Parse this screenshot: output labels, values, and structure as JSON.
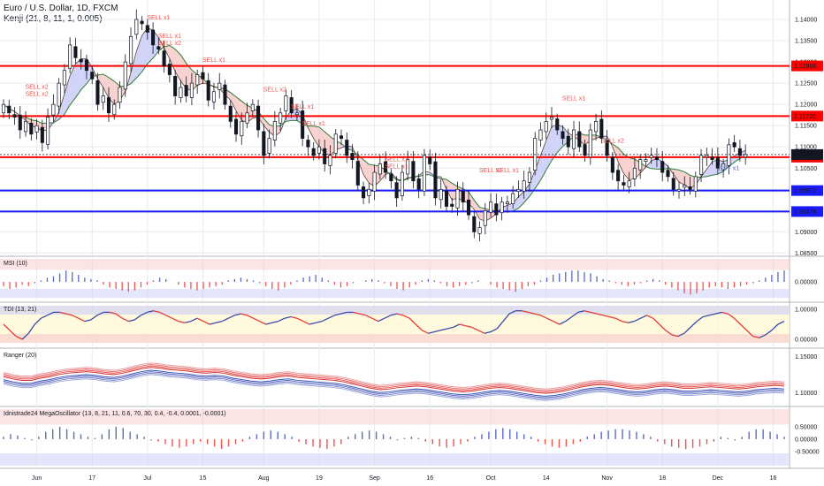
{
  "header": {
    "symbol": "Euro / U.S. Dollar, 1D, FXCM",
    "indicator": "Kenji (21, 8, 11, 1, 0.005)"
  },
  "colors": {
    "up": "#ffffff",
    "down": "#131722",
    "red_level": "#ff0000",
    "blue_level": "#1a1aff",
    "green_line": "#2e7d32",
    "pink_fill": "#f7c9c9",
    "blue_fill": "#c9cdf7",
    "sell": "#ef5350",
    "buy": "#5c6bc0",
    "grid": "#e8ebf0"
  },
  "chart_data": [
    {
      "type": "candlestick",
      "pane": "main",
      "title": "Euro / U.S. Dollar, 1D, FXCM",
      "ylim": [
        1.0855,
        1.1425
      ],
      "y_ticks": [
        1.14,
        1.135,
        1.13,
        1.125,
        1.12,
        1.115,
        1.11,
        1.105,
        1.1,
        1.095,
        1.09,
        1.085
      ],
      "y_tick_labels": [
        "1.14000",
        "1.13500",
        "1.13000",
        "1.12500",
        "1.12000",
        "1.11500",
        "1.11000",
        "1.10500",
        "1.10000",
        "1.09500",
        "1.09000",
        "1.08500"
      ],
      "x_labels": [
        "Jun",
        "17",
        "Jul",
        "15",
        "Aug",
        "19",
        "Sep",
        "16",
        "Oct",
        "14",
        "Nov",
        "18",
        "Dec",
        "16"
      ],
      "x_label_index": [
        6,
        16,
        26,
        36,
        47,
        57,
        67,
        77,
        88,
        98,
        109,
        119,
        129,
        139
      ],
      "price_levels": [
        {
          "value": 1.12906,
          "label": "1.12906",
          "color": "red"
        },
        {
          "value": 1.11726,
          "label": "1.11726",
          "color": "red"
        },
        {
          "value": 1.10759,
          "label": "1.10759",
          "color": "red"
        },
        {
          "value": 1.09972,
          "label": "1.09972",
          "color": "blue"
        },
        {
          "value": 1.09478,
          "label": "1.09478",
          "color": "blue"
        }
      ],
      "current_price": {
        "value": 1.1082,
        "label": "1.10820"
      },
      "closes": [
        1.12,
        1.118,
        1.117,
        1.114,
        1.116,
        1.113,
        1.115,
        1.111,
        1.117,
        1.12,
        1.125,
        1.128,
        1.134,
        1.131,
        1.13,
        1.128,
        1.126,
        1.12,
        1.122,
        1.118,
        1.12,
        1.124,
        1.13,
        1.136,
        1.14,
        1.139,
        1.137,
        1.134,
        1.133,
        1.129,
        1.127,
        1.122,
        1.124,
        1.122,
        1.125,
        1.127,
        1.126,
        1.121,
        1.123,
        1.125,
        1.12,
        1.116,
        1.113,
        1.116,
        1.118,
        1.12,
        1.114,
        1.108,
        1.112,
        1.116,
        1.118,
        1.122,
        1.118,
        1.118,
        1.112,
        1.11,
        1.108,
        1.11,
        1.106,
        1.108,
        1.113,
        1.112,
        1.108,
        1.107,
        1.101,
        1.098,
        1.1,
        1.104,
        1.106,
        1.104,
        1.102,
        1.098,
        1.104,
        1.107,
        1.102,
        1.1,
        1.108,
        1.106,
        1.098,
        1.1,
        1.096,
        1.096,
        1.1,
        1.097,
        1.094,
        1.09,
        1.091,
        1.095,
        1.097,
        1.094,
        1.097,
        1.097,
        1.099,
        1.1,
        1.102,
        1.104,
        1.112,
        1.114,
        1.116,
        1.117,
        1.114,
        1.112,
        1.11,
        1.114,
        1.11,
        1.108,
        1.114,
        1.116,
        1.112,
        1.108,
        1.104,
        1.102,
        1.101,
        1.102,
        1.105,
        1.107,
        1.107,
        1.108,
        1.107,
        1.104,
        1.103,
        1.1,
        1.1,
        1.101,
        1.1,
        1.103,
        1.108,
        1.108,
        1.107,
        1.105,
        1.106,
        1.1105,
        1.11,
        1.108,
        1.1082
      ],
      "signals": [
        {
          "index": 6,
          "label": "SELL x2"
        },
        {
          "index": 6,
          "label": "SELL x2"
        },
        {
          "index": 28,
          "label": "SELL x1"
        },
        {
          "index": 30,
          "label": "SELL x2"
        },
        {
          "index": 30,
          "label": "SELL x1"
        },
        {
          "index": 38,
          "label": "SELL x1"
        },
        {
          "index": 49,
          "label": "SELL x2"
        },
        {
          "index": 54,
          "label": "SELL x1"
        },
        {
          "index": 56,
          "label": "SELL x1"
        },
        {
          "index": 71,
          "label": "SELL x1"
        },
        {
          "index": 71,
          "label": "SELL x1"
        },
        {
          "index": 88,
          "label": "SELL x1"
        },
        {
          "index": 91,
          "label": "SELL x1"
        },
        {
          "index": 110,
          "label": "SELL x2"
        },
        {
          "index": 103,
          "label": "SELL x1"
        },
        {
          "index": 131,
          "label": "BUY x1"
        }
      ]
    },
    {
      "type": "bar",
      "pane": "msi",
      "title": "MSI (10)",
      "y_tick_labels": [
        "0.00000"
      ],
      "values": [
        -0.3,
        -0.5,
        -0.4,
        -0.2,
        -0.3,
        -0.1,
        0.1,
        0.3,
        0.4,
        0.6,
        0.8,
        0.7,
        0.5,
        0.3,
        0.2,
        0.1,
        -0.2,
        -0.4,
        -0.5,
        -0.6,
        -0.7,
        -0.6,
        -0.4,
        -0.2,
        0.1,
        0.3,
        0.2,
        0.0,
        -0.2,
        -0.4,
        -0.5,
        -0.6,
        -0.5,
        -0.4,
        -0.3,
        -0.2,
        0.1,
        0.2,
        0.3,
        0.2,
        0.1,
        -0.1,
        -0.3,
        -0.5,
        -0.6,
        -0.4,
        -0.2,
        0.1,
        0.3,
        0.4,
        0.5,
        0.3,
        0.1,
        -0.2,
        -0.4,
        -0.3,
        -0.1,
        0.0,
        0.1,
        0.2,
        0.1,
        -0.1,
        -0.3,
        -0.5,
        -0.6,
        -0.4,
        -0.2,
        0.1,
        0.2,
        0.1,
        -0.1,
        -0.3,
        -0.4,
        -0.3,
        -0.2,
        -0.1,
        0.1,
        0.0,
        -0.2,
        -0.4,
        -0.5,
        -0.6,
        -0.7,
        -0.5,
        -0.3,
        -0.2,
        0.1,
        0.3,
        0.5,
        0.6,
        0.7,
        0.8,
        0.8,
        0.7,
        0.6,
        0.4,
        0.2,
        0.1,
        -0.1,
        -0.2,
        -0.3,
        -0.2,
        -0.1,
        0.1,
        0.2,
        0.1,
        -0.2,
        -0.4,
        -0.6,
        -0.8,
        -0.9,
        -0.8,
        -0.6,
        -0.4,
        -0.3,
        -0.4,
        -0.5,
        -0.4,
        -0.3,
        -0.2,
        -0.1,
        0.1,
        0.3,
        0.5,
        0.7,
        0.8
      ]
    },
    {
      "type": "line",
      "pane": "tdi",
      "title": "TDI (13, 21)",
      "y_tick_labels": [
        "1.00000",
        "0.00000"
      ],
      "values": [
        0.5,
        0.3,
        0.1,
        0.0,
        0.2,
        0.5,
        0.7,
        0.8,
        0.9,
        0.9,
        0.85,
        0.8,
        0.7,
        0.6,
        0.65,
        0.8,
        0.9,
        0.9,
        0.85,
        0.7,
        0.6,
        0.65,
        0.8,
        0.9,
        0.95,
        0.9,
        0.8,
        0.7,
        0.6,
        0.55,
        0.6,
        0.7,
        0.6,
        0.5,
        0.55,
        0.6,
        0.7,
        0.8,
        0.85,
        0.8,
        0.7,
        0.6,
        0.5,
        0.55,
        0.6,
        0.7,
        0.75,
        0.7,
        0.6,
        0.5,
        0.55,
        0.6,
        0.7,
        0.8,
        0.85,
        0.9,
        0.9,
        0.85,
        0.8,
        0.7,
        0.6,
        0.7,
        0.8,
        0.85,
        0.8,
        0.7,
        0.5,
        0.3,
        0.2,
        0.25,
        0.3,
        0.35,
        0.4,
        0.5,
        0.45,
        0.4,
        0.3,
        0.2,
        0.25,
        0.35,
        0.6,
        0.85,
        0.95,
        0.95,
        0.9,
        0.85,
        0.8,
        0.7,
        0.6,
        0.5,
        0.6,
        0.75,
        0.9,
        0.95,
        0.9,
        0.85,
        0.8,
        0.75,
        0.7,
        0.6,
        0.55,
        0.6,
        0.7,
        0.8,
        0.7,
        0.5,
        0.3,
        0.15,
        0.1,
        0.2,
        0.4,
        0.6,
        0.75,
        0.8,
        0.85,
        0.9,
        0.85,
        0.7,
        0.5,
        0.3,
        0.1,
        0.05,
        0.15,
        0.3,
        0.5,
        0.6
      ]
    },
    {
      "type": "line",
      "pane": "ranger",
      "title": "Ranger (20)",
      "y_tick_labels": [
        "1.15000",
        "1.10000"
      ],
      "values": [
        1.12,
        1.117,
        1.115,
        1.115,
        1.118,
        1.12,
        1.123,
        1.125,
        1.126,
        1.127,
        1.126,
        1.124,
        1.123,
        1.125,
        1.128,
        1.131,
        1.133,
        1.132,
        1.13,
        1.129,
        1.128,
        1.126,
        1.125,
        1.126,
        1.125,
        1.122,
        1.12,
        1.118,
        1.117,
        1.118,
        1.12,
        1.121,
        1.119,
        1.118,
        1.117,
        1.116,
        1.115,
        1.113,
        1.11,
        1.107,
        1.104,
        1.102,
        1.103,
        1.105,
        1.106,
        1.107,
        1.106,
        1.104,
        1.102,
        1.1,
        1.099,
        1.1,
        1.102,
        1.104,
        1.105,
        1.104,
        1.102,
        1.1,
        1.098,
        1.097,
        1.098,
        1.1,
        1.103,
        1.106,
        1.108,
        1.109,
        1.108,
        1.106,
        1.104,
        1.103,
        1.104,
        1.106,
        1.107,
        1.106,
        1.104,
        1.104,
        1.105,
        1.106,
        1.105,
        1.104,
        1.103,
        1.104,
        1.106,
        1.107,
        1.108,
        1.107
      ]
    },
    {
      "type": "bar",
      "pane": "mega",
      "title": "Idnistrade24 MegaOscillator (13, 8, 21, 11, 0.6, 70, 30, 0.4, -0.4, 0.0001, -0.0001)",
      "y_tick_labels": [
        "0.50000",
        "0.00000",
        "-0.50000"
      ],
      "values": [
        0.1,
        0.2,
        0.15,
        0.05,
        -0.05,
        0.1,
        0.3,
        0.4,
        0.5,
        0.4,
        0.3,
        0.2,
        0.1,
        0.05,
        0.2,
        0.4,
        0.5,
        0.45,
        0.3,
        0.2,
        0.1,
        -0.05,
        -0.1,
        -0.2,
        -0.3,
        -0.35,
        -0.3,
        -0.2,
        -0.1,
        -0.2,
        -0.3,
        -0.4,
        -0.3,
        -0.2,
        -0.1,
        0.1,
        0.2,
        0.3,
        0.35,
        0.3,
        0.2,
        0.1,
        -0.1,
        -0.2,
        -0.3,
        -0.35,
        -0.4,
        -0.3,
        -0.2,
        0.1,
        0.2,
        0.3,
        0.35,
        0.3,
        0.2,
        0.1,
        -0.05,
        0.05,
        0.1,
        0.05,
        -0.1,
        -0.2,
        -0.3,
        -0.35,
        -0.3,
        -0.2,
        -0.1,
        0.1,
        0.2,
        0.3,
        0.4,
        0.45,
        0.4,
        0.3,
        0.2,
        0.1,
        -0.1,
        -0.2,
        -0.3,
        -0.35,
        -0.3,
        -0.2,
        -0.1,
        0.1,
        0.2,
        0.3,
        0.35,
        0.4,
        0.4,
        0.35,
        0.3,
        0.2,
        0.1,
        -0.1,
        -0.2,
        -0.3,
        -0.35,
        -0.4,
        -0.35,
        -0.3,
        -0.2,
        -0.1,
        0.1,
        0.05,
        -0.05,
        0.1,
        0.3,
        0.4,
        0.4,
        0.3,
        0.2,
        0.1
      ]
    }
  ]
}
